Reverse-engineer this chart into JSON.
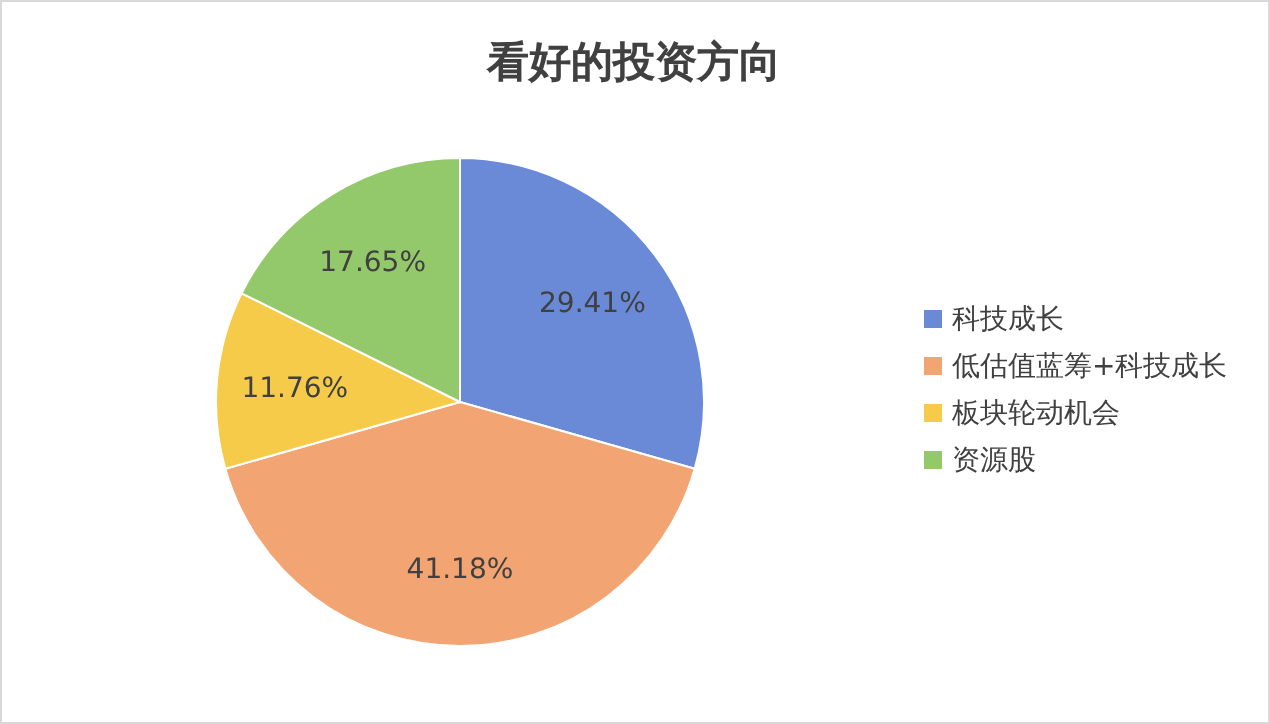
{
  "chart_data": {
    "type": "pie",
    "title": "看好的投资方向",
    "categories": [
      "科技成长",
      "低估值蓝筹+科技成长",
      "板块轮动机会",
      "资源股"
    ],
    "values": [
      29.41,
      41.18,
      11.76,
      17.65
    ],
    "value_labels": [
      "29.41%",
      "41.18%",
      "11.76%",
      "17.65%"
    ],
    "colors": [
      "#6a8ad8",
      "#f2a472",
      "#f7cb4a",
      "#93c96a"
    ],
    "legend": "right"
  }
}
